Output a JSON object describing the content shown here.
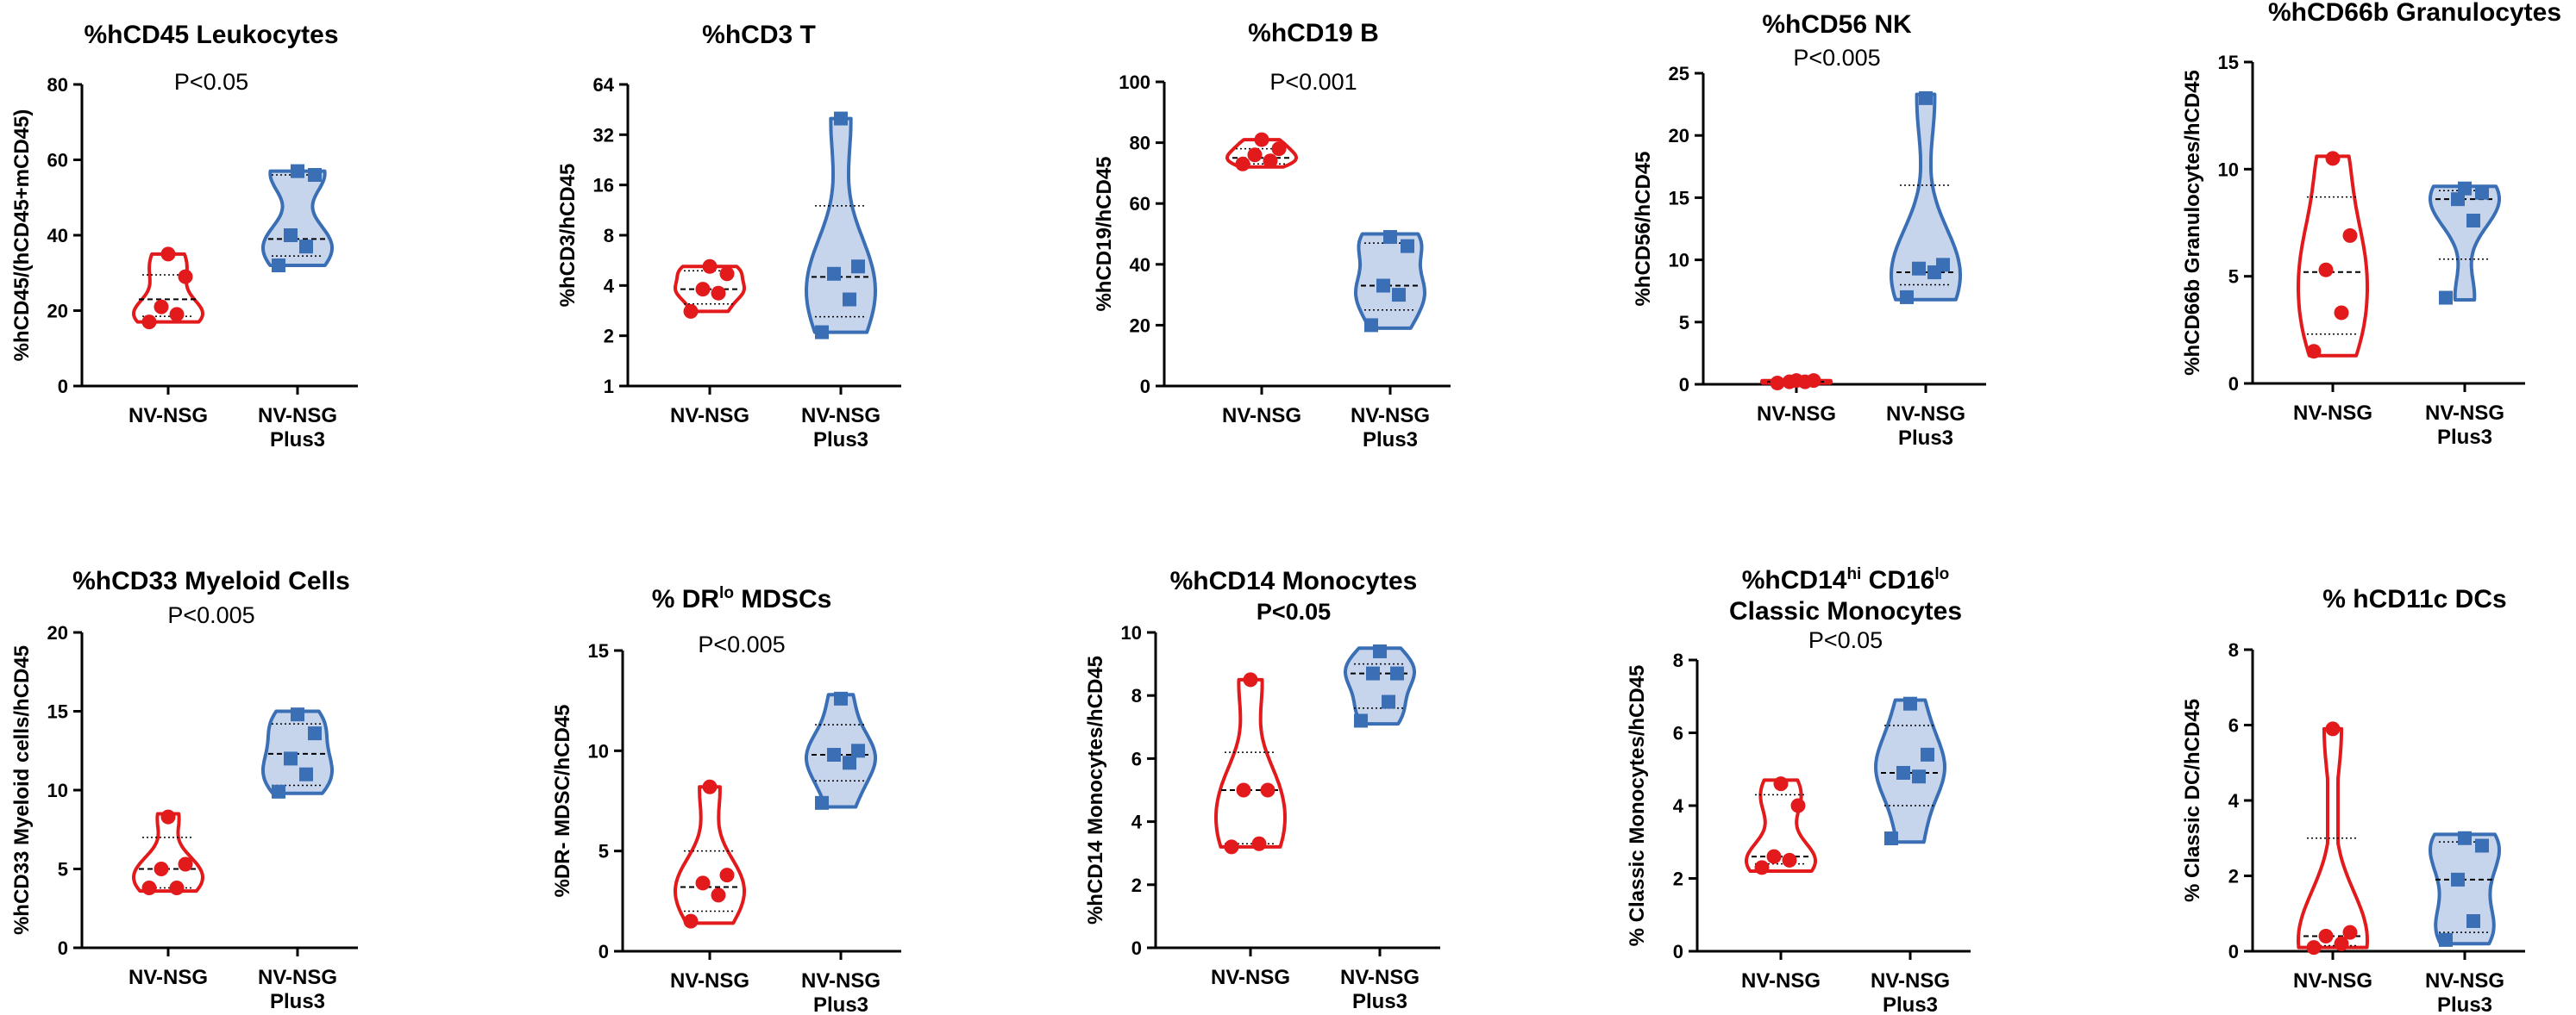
{
  "colors": {
    "red": "#e31a1c",
    "blue": "#3a6fb5",
    "blue_fill": "#c6d4ec"
  },
  "chart_data": [
    {
      "type": "violin",
      "title": "%hCD45 Leukocytes",
      "pvalue": "P<0.05",
      "ylabel": "%hCD45/(hCD45+mCD45)",
      "yscale": "linear",
      "ylim": [
        0,
        80
      ],
      "yticks": [
        "0",
        "20",
        "40",
        "60",
        "80"
      ],
      "categories": [
        "NV-NSG",
        "NV-NSG Plus3"
      ],
      "series": [
        {
          "color": "red",
          "marker": "circle",
          "values": [
            17,
            19,
            21,
            29,
            35
          ],
          "min": 17,
          "max": 35,
          "median": 23,
          "q1": 18.5,
          "q3": 29.5
        },
        {
          "color": "blue",
          "marker": "square",
          "values": [
            32,
            37,
            40,
            56,
            57
          ],
          "min": 32,
          "max": 57,
          "median": 39,
          "q1": 34.5,
          "q3": 56
        }
      ]
    },
    {
      "type": "violin",
      "title": "%hCD3 T",
      "pvalue": "",
      "ylabel": "%hCD3/hCD45",
      "yscale": "log2",
      "ylim": [
        1,
        64
      ],
      "yticks": [
        "1",
        "2",
        "4",
        "8",
        "16",
        "32",
        "64"
      ],
      "categories": [
        "NV-NSG",
        "NV-NSG Plus3"
      ],
      "series": [
        {
          "color": "red",
          "marker": "circle",
          "values": [
            2.8,
            3.6,
            3.8,
            4.7,
            5.2
          ],
          "min": 2.8,
          "max": 5.2,
          "median": 3.8,
          "q1": 3.1,
          "q3": 4.9
        },
        {
          "color": "blue",
          "marker": "square",
          "values": [
            2.1,
            3.3,
            4.7,
            5.2,
            40
          ],
          "min": 2.1,
          "max": 40,
          "median": 4.5,
          "q1": 2.6,
          "q3": 12
        }
      ]
    },
    {
      "type": "violin",
      "title": "%hCD19 B",
      "pvalue": "P<0.001",
      "ylabel": "%hCD19/hCD45",
      "yscale": "linear",
      "ylim": [
        0,
        100
      ],
      "yticks": [
        "0",
        "20",
        "40",
        "60",
        "80",
        "100"
      ],
      "categories": [
        "NV-NSG",
        "NV-NSG Plus3"
      ],
      "series": [
        {
          "color": "red",
          "marker": "circle",
          "values": [
            73,
            74,
            76,
            78,
            81
          ],
          "min": 72,
          "max": 81,
          "median": 75,
          "q1": 73,
          "q3": 78
        },
        {
          "color": "blue",
          "marker": "square",
          "values": [
            20,
            30,
            33,
            46,
            49
          ],
          "min": 19,
          "max": 50,
          "median": 33,
          "q1": 25,
          "q3": 47
        }
      ]
    },
    {
      "type": "violin",
      "title": "%hCD56 NK",
      "pvalue": "P<0.005",
      "ylabel": "%hCD56/hCD45",
      "yscale": "linear",
      "ylim": [
        0,
        25
      ],
      "yticks": [
        "0",
        "5",
        "10",
        "15",
        "20",
        "25"
      ],
      "categories": [
        "NV-NSG",
        "NV-NSG Plus3"
      ],
      "series": [
        {
          "color": "red",
          "marker": "circle",
          "values": [
            0.1,
            0.2,
            0.2,
            0.3,
            0.3
          ],
          "min": 0.1,
          "max": 0.3,
          "median": 0.2,
          "q1": 0.15,
          "q3": 0.25
        },
        {
          "color": "blue",
          "marker": "square",
          "values": [
            7,
            9,
            9.3,
            9.6,
            23
          ],
          "min": 6.8,
          "max": 23.3,
          "median": 9,
          "q1": 8,
          "q3": 16
        }
      ]
    },
    {
      "type": "violin",
      "title": "%hCD66b Granulocytes",
      "pvalue": "",
      "ylabel": "%hCD66b Granulocytes/hCD45",
      "yscale": "linear",
      "ylim": [
        0,
        15
      ],
      "yticks": [
        "0",
        "5",
        "10",
        "15"
      ],
      "categories": [
        "NV-NSG",
        "NV-NSG Plus3"
      ],
      "series": [
        {
          "color": "red",
          "marker": "circle",
          "values": [
            1.5,
            3.3,
            5.3,
            6.9,
            10.5
          ],
          "min": 1.3,
          "max": 10.6,
          "median": 5.2,
          "q1": 2.3,
          "q3": 8.7
        },
        {
          "color": "blue",
          "marker": "square",
          "values": [
            4,
            7.6,
            8.6,
            8.9,
            9.1
          ],
          "min": 3.9,
          "max": 9.2,
          "median": 8.6,
          "q1": 5.8,
          "q3": 9
        }
      ]
    },
    {
      "type": "violin",
      "title": "%hCD33 Myeloid Cells",
      "pvalue": "P<0.005",
      "ylabel": "%hCD33 Myeloid cells/hCD45",
      "yscale": "linear",
      "ylim": [
        0,
        20
      ],
      "yticks": [
        "0",
        "5",
        "10",
        "15",
        "20"
      ],
      "categories": [
        "NV-NSG",
        "NV-NSG Plus3"
      ],
      "series": [
        {
          "color": "red",
          "marker": "circle",
          "values": [
            3.8,
            3.8,
            5,
            5.3,
            8.3
          ],
          "min": 3.6,
          "max": 8.5,
          "median": 5,
          "q1": 3.8,
          "q3": 7
        },
        {
          "color": "blue",
          "marker": "square",
          "values": [
            9.9,
            11,
            12,
            13.6,
            14.8
          ],
          "min": 9.8,
          "max": 15,
          "median": 12.3,
          "q1": 10.3,
          "q3": 14.2
        }
      ]
    },
    {
      "type": "violin",
      "title": "% DRlo MDSCs",
      "title_parts": {
        "pre": "% DR",
        "sup": "lo",
        "post": " MDSCs"
      },
      "pvalue": "P<0.005",
      "ylabel": "%DR- MDSC/hCD45",
      "yscale": "linear",
      "ylim": [
        0,
        15
      ],
      "yticks": [
        "0",
        "5",
        "10",
        "15"
      ],
      "categories": [
        "NV-NSG",
        "NV-NSG Plus3"
      ],
      "series": [
        {
          "color": "red",
          "marker": "circle",
          "values": [
            1.5,
            2.8,
            3.4,
            3.8,
            8.2
          ],
          "min": 1.4,
          "max": 8.2,
          "median": 3.2,
          "q1": 2,
          "q3": 5
        },
        {
          "color": "blue",
          "marker": "square",
          "values": [
            7.4,
            9.4,
            9.8,
            10,
            12.6
          ],
          "min": 7.2,
          "max": 12.8,
          "median": 9.8,
          "q1": 8.5,
          "q3": 11.3
        }
      ]
    },
    {
      "type": "violin",
      "title": "%hCD14 Monocytes",
      "pvalue": "P<0.05",
      "pvalue_bold": true,
      "ylabel": "%hCD14 Monocytes/hCD45",
      "yscale": "linear",
      "ylim": [
        0,
        10
      ],
      "yticks": [
        "0",
        "2",
        "4",
        "6",
        "8",
        "10"
      ],
      "categories": [
        "NV-NSG",
        "NV-NSG Plus3"
      ],
      "series": [
        {
          "color": "red",
          "marker": "circle",
          "values": [
            3.2,
            3.3,
            5,
            5,
            8.5
          ],
          "min": 3.2,
          "max": 8.5,
          "median": 5,
          "q1": 3.3,
          "q3": 6.2
        },
        {
          "color": "blue",
          "marker": "square",
          "values": [
            7.2,
            7.8,
            8.7,
            8.7,
            9.4
          ],
          "min": 7.1,
          "max": 9.5,
          "median": 8.7,
          "q1": 7.6,
          "q3": 9
        }
      ]
    },
    {
      "type": "violin",
      "title": "%hCD14hi CD16lo Classic Monocytes",
      "title_parts": {
        "pre": "%hCD14",
        "sup": "hi",
        "mid": " CD16",
        "sup2": "lo",
        "line2": "Classic Monocytes"
      },
      "pvalue": "P<0.05",
      "ylabel": "% Classic Monocytes/hCD45",
      "yscale": "linear",
      "ylim": [
        0,
        8
      ],
      "yticks": [
        "0",
        "2",
        "4",
        "6",
        "8"
      ],
      "categories": [
        "NV-NSG",
        "NV-NSG Plus3"
      ],
      "series": [
        {
          "color": "red",
          "marker": "circle",
          "values": [
            2.3,
            2.5,
            2.6,
            4,
            4.6
          ],
          "min": 2.2,
          "max": 4.7,
          "median": 2.6,
          "q1": 2.4,
          "q3": 4.3
        },
        {
          "color": "blue",
          "marker": "square",
          "values": [
            3.1,
            4.8,
            4.9,
            5.4,
            6.8
          ],
          "min": 3,
          "max": 6.9,
          "median": 4.9,
          "q1": 4,
          "q3": 6.2
        }
      ]
    },
    {
      "type": "violin",
      "title": "% hCD11c DCs",
      "pvalue": "",
      "ylabel": "% Classic DC/hCD45",
      "yscale": "linear",
      "ylim": [
        0,
        8
      ],
      "yticks": [
        "0",
        "2",
        "4",
        "6",
        "8"
      ],
      "categories": [
        "NV-NSG",
        "NV-NSG Plus3"
      ],
      "series": [
        {
          "color": "red",
          "marker": "circle",
          "values": [
            0.1,
            0.2,
            0.4,
            0.5,
            5.9
          ],
          "min": 0.1,
          "max": 5.9,
          "median": 0.4,
          "q1": 0.15,
          "q3": 3
        },
        {
          "color": "blue",
          "marker": "square",
          "values": [
            0.3,
            0.8,
            1.9,
            2.8,
            3
          ],
          "min": 0.2,
          "max": 3.1,
          "median": 1.9,
          "q1": 0.5,
          "q3": 2.9
        }
      ]
    }
  ]
}
